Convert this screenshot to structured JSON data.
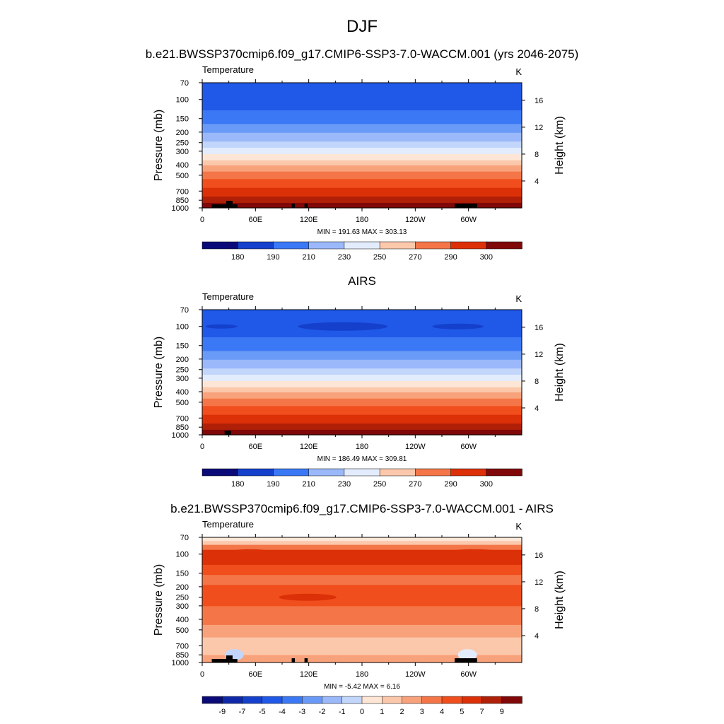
{
  "figure": {
    "title": "DJF"
  },
  "chart_data": [
    {
      "type": "heatmap",
      "title": "b.e21.BWSSP370cmip6.f09_g17.CMIP6-SSP3-7.0-WACCM.001 (yrs 2046-2075)",
      "left_label": "Temperature",
      "right_label": "K",
      "ylabel": "Pressure (mb)",
      "ylabel_right": "Height (km)",
      "x_ticks": [
        "0",
        "60E",
        "120E",
        "180",
        "120W",
        "60W"
      ],
      "y_ticks": [
        "70",
        "100",
        "150",
        "200",
        "250",
        "300",
        "400",
        "500",
        "700",
        "850",
        "1000"
      ],
      "height_ticks": [
        "16",
        "12",
        "8",
        "4"
      ],
      "stats": "MIN = 191.63  MAX = 303.13",
      "colorbar_labels": [
        "180",
        "190",
        "210",
        "230",
        "250",
        "270",
        "290",
        "300"
      ],
      "data_range": [
        191.63,
        303.13
      ]
    },
    {
      "type": "heatmap",
      "title": "AIRS",
      "left_label": "Temperature",
      "right_label": "K",
      "ylabel": "Pressure (mb)",
      "ylabel_right": "Height (km)",
      "x_ticks": [
        "0",
        "60E",
        "120E",
        "180",
        "120W",
        "60W"
      ],
      "y_ticks": [
        "70",
        "100",
        "150",
        "200",
        "250",
        "300",
        "400",
        "500",
        "700",
        "850",
        "1000"
      ],
      "height_ticks": [
        "16",
        "12",
        "8",
        "4"
      ],
      "stats": "MIN = 186.49  MAX = 309.81",
      "colorbar_labels": [
        "180",
        "190",
        "210",
        "230",
        "250",
        "270",
        "290",
        "300"
      ],
      "data_range": [
        186.49,
        309.81
      ]
    },
    {
      "type": "heatmap",
      "title": "b.e21.BWSSP370cmip6.f09_g17.CMIP6-SSP3-7.0-WACCM.001 - AIRS",
      "left_label": "Temperature",
      "right_label": "K",
      "ylabel": "Pressure (mb)",
      "ylabel_right": "Height (km)",
      "x_ticks": [
        "0",
        "60E",
        "120E",
        "180",
        "120W",
        "60W"
      ],
      "y_ticks": [
        "70",
        "100",
        "150",
        "200",
        "250",
        "300",
        "400",
        "500",
        "700",
        "850",
        "1000"
      ],
      "height_ticks": [
        "16",
        "12",
        "8",
        "4"
      ],
      "stats": "MIN =  -5.42  MAX =   6.16",
      "colorbar_labels": [
        "-9",
        "-7",
        "-5",
        "-4",
        "-3",
        "-2",
        "-1",
        "0",
        "1",
        "2",
        "3",
        "4",
        "5",
        "7",
        "9"
      ],
      "data_range": [
        -5.42,
        6.16
      ]
    }
  ],
  "colors": {
    "abs_scale": [
      "#0a0a78",
      "#0f28a8",
      "#1440cc",
      "#2058e8",
      "#3a78f5",
      "#6a9af8",
      "#9ab8fa",
      "#c2d6fb",
      "#e2ecfd",
      "#fde6d6",
      "#fbc8ac",
      "#f8a27c",
      "#f47648",
      "#f04e1c",
      "#dc3008",
      "#b02008",
      "#800808"
    ],
    "diff_scale": [
      "#0a0a78",
      "#0f28a8",
      "#1440cc",
      "#2058e8",
      "#3a78f5",
      "#6a9af8",
      "#9ab8fa",
      "#c2d6fb",
      "#e2ecfd",
      "#fde6d6",
      "#fbc8ac",
      "#f8a27c",
      "#f47648",
      "#f04e1c",
      "#dc3008",
      "#b02008",
      "#800808"
    ]
  }
}
